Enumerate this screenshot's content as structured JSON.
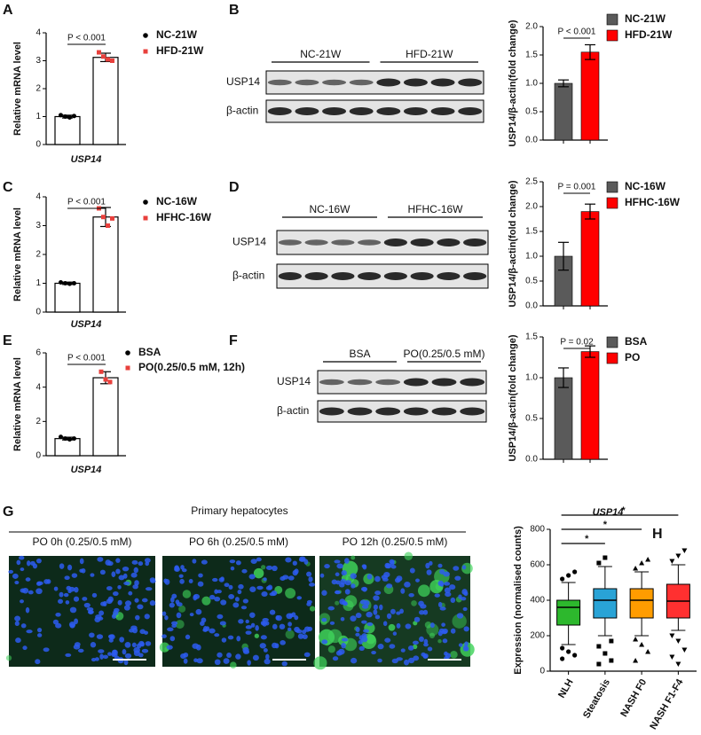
{
  "chart_data": [
    {
      "type": "bar",
      "ylabel": "Relative mRNA level",
      "categories": [
        "USP14"
      ],
      "bar_color": "#ffffff",
      "ylim": [
        0,
        4
      ],
      "yticks": [
        0,
        1,
        2,
        3,
        4
      ],
      "annotation": "P < 0.001",
      "series": [
        {
          "name": "NC-21W",
          "color": "#000000",
          "values": [
            1.0
          ],
          "errors": [
            0.05
          ],
          "points": [
            1.05,
            1.0,
            0.97,
            1.02
          ]
        },
        {
          "name": "HFD-21W",
          "color": "#e8403c",
          "values": [
            3.12
          ],
          "errors": [
            0.15
          ],
          "points": [
            3.3,
            3.15,
            3.05,
            3.0
          ]
        }
      ]
    },
    {
      "type": "bar",
      "ylabel": "USP14/β-actin(fold change)",
      "categories": [
        null
      ],
      "ylim": [
        0,
        2.0
      ],
      "yticks": [
        {
          "value": 0,
          "label": "0.0"
        },
        {
          "value": 0.5,
          "label": "0.5"
        },
        {
          "value": 1.0,
          "label": "1.0"
        },
        {
          "value": 1.5,
          "label": "1.5"
        },
        {
          "value": 2.0,
          "label": "2.0"
        }
      ],
      "annotation": "P < 0.001",
      "series": [
        {
          "name": "NC-21W",
          "color": "#5a5a5a",
          "values": [
            1.0
          ],
          "errors": [
            0.06
          ]
        },
        {
          "name": "HFD-21W",
          "color": "#ff0000",
          "values": [
            1.55
          ],
          "errors": [
            0.13
          ]
        }
      ]
    },
    {
      "type": "bar",
      "ylabel": "Relative mRNA level",
      "categories": [
        "USP14"
      ],
      "bar_color": "#ffffff",
      "ylim": [
        0,
        4
      ],
      "yticks": [
        0,
        1,
        2,
        3,
        4
      ],
      "annotation": "P < 0.001",
      "series": [
        {
          "name": "NC-16W",
          "color": "#000000",
          "values": [
            1.0
          ],
          "errors": [
            0.04
          ],
          "points": [
            1.03,
            1.0,
            0.98,
            1.0
          ]
        },
        {
          "name": "HFHC-16W",
          "color": "#e8403c",
          "values": [
            3.3
          ],
          "errors": [
            0.33
          ],
          "points": [
            3.6,
            3.3,
            3.0,
            3.25
          ]
        }
      ]
    },
    {
      "type": "bar",
      "ylabel": "USP14/β-actin(fold change)",
      "categories": [
        null
      ],
      "ylim": [
        0,
        2.5
      ],
      "yticks": [
        {
          "value": 0,
          "label": "0.0"
        },
        {
          "value": 0.5,
          "label": "0.5"
        },
        {
          "value": 1.0,
          "label": "1.0"
        },
        {
          "value": 1.5,
          "label": "1.5"
        },
        {
          "value": 2.0,
          "label": "2.0"
        },
        {
          "value": 2.5,
          "label": "2.5"
        }
      ],
      "annotation": "P = 0.001",
      "series": [
        {
          "name": "NC-16W",
          "color": "#5a5a5a",
          "values": [
            1.0
          ],
          "errors": [
            0.28
          ]
        },
        {
          "name": "HFHC-16W",
          "color": "#ff0000",
          "values": [
            1.9
          ],
          "errors": [
            0.15
          ]
        }
      ]
    },
    {
      "type": "bar",
      "ylabel": "Relative mRNA level",
      "categories": [
        "USP14"
      ],
      "bar_color": "#ffffff",
      "ylim": [
        0,
        6
      ],
      "yticks": [
        0,
        2,
        4,
        6
      ],
      "annotation": "P < 0.001",
      "series": [
        {
          "name": "BSA",
          "color": "#000000",
          "values": [
            1.0
          ],
          "errors": [
            0.08
          ],
          "points": [
            1.1,
            1.0,
            0.95,
            1.0
          ]
        },
        {
          "name": "PO(0.25/0.5 mM, 12h)",
          "color": "#e8403c",
          "values": [
            4.55
          ],
          "errors": [
            0.35
          ],
          "points": [
            4.9,
            4.45,
            4.3
          ]
        }
      ]
    },
    {
      "type": "bar",
      "ylabel": "USP14/β-actin(fold change)",
      "categories": [
        null
      ],
      "ylim": [
        0,
        1.5
      ],
      "yticks": [
        {
          "value": 0,
          "label": "0.0"
        },
        {
          "value": 0.5,
          "label": "0.5"
        },
        {
          "value": 1.0,
          "label": "1.0"
        },
        {
          "value": 1.5,
          "label": "1.5"
        }
      ],
      "annotation": "P = 0.02",
      "series": [
        {
          "name": "BSA",
          "color": "#5a5a5a",
          "values": [
            1.0
          ],
          "errors": [
            0.12
          ]
        },
        {
          "name": "PO",
          "color": "#ff0000",
          "values": [
            1.32
          ],
          "errors": [
            0.07
          ]
        }
      ]
    },
    {
      "type": "box",
      "title": "USP14",
      "ylabel": "Expression (normalised counts)",
      "categories": [
        "NLH",
        "Steatosis",
        "NASH F0",
        "NASH F1-F4"
      ],
      "colors": [
        "#2db82d",
        "#29a3d6",
        "#ff9c00",
        "#ff3030"
      ],
      "ylim": [
        0,
        800
      ],
      "yticks": [
        0,
        200,
        400,
        600,
        800
      ],
      "annotations": [
        "*",
        "*",
        "*"
      ],
      "boxes": [
        {
          "min": 150,
          "q1": 260,
          "median": 360,
          "q3": 400,
          "max": 500,
          "outliers": [
            520,
            540,
            560,
            130,
            110,
            90,
            70
          ]
        },
        {
          "min": 200,
          "q1": 300,
          "median": 400,
          "q3": 465,
          "max": 590,
          "outliers": [
            610,
            640,
            170,
            140,
            100,
            60,
            40
          ]
        },
        {
          "min": 200,
          "q1": 300,
          "median": 400,
          "q3": 465,
          "max": 560,
          "outliers": [
            580,
            610,
            630,
            180,
            150,
            110,
            60
          ]
        },
        {
          "min": 230,
          "q1": 300,
          "median": 395,
          "q3": 490,
          "max": 600,
          "outliers": [
            620,
            650,
            680,
            200,
            170,
            120,
            80,
            40
          ]
        }
      ]
    }
  ],
  "blots": [
    {
      "groups": [
        "NC-21W",
        "HFD-21W"
      ],
      "rows": [
        "USP14",
        "β-actin"
      ]
    },
    {
      "groups": [
        "NC-16W",
        "HFHC-16W"
      ],
      "rows": [
        "USP14",
        "β-actin"
      ]
    },
    {
      "groups": [
        "BSA",
        "PO(0.25/0.5 mM)"
      ],
      "rows": [
        "USP14",
        "β-actin"
      ]
    }
  ],
  "microscopy": {
    "title": "Primary hepatocytes",
    "labels": [
      "PO 0h (0.25/0.5 mM)",
      "PO 6h (0.25/0.5 mM)",
      "PO 12h (0.25/0.5 mM)"
    ]
  },
  "panel_letters": [
    "A",
    "B",
    "C",
    "D",
    "E",
    "F",
    "G",
    "H"
  ]
}
